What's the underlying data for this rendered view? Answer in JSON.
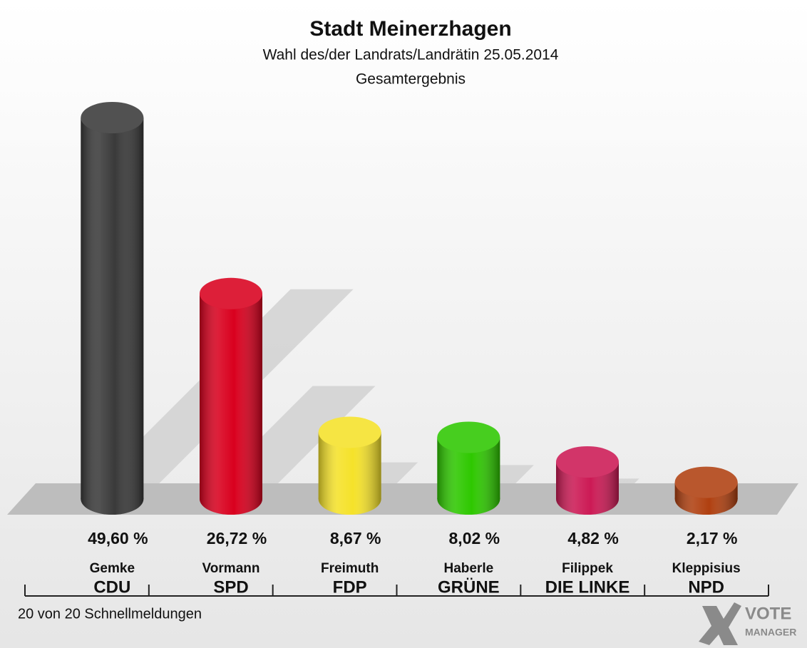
{
  "chart_data": {
    "type": "bar",
    "title": "Stadt Meinerzhagen",
    "subtitle": [
      "Wahl des/der Landrats/Landrätin 25.05.2014",
      "Gesamtergebnis"
    ],
    "categories": [
      "Gemke",
      "Vormann",
      "Freimuth",
      "Haberle",
      "Filippek",
      "Kleppisius"
    ],
    "parties": [
      "CDU",
      "SPD",
      "FDP",
      "GRÜNE",
      "DIE LINKE",
      "NPD"
    ],
    "values": [
      49.6,
      26.72,
      8.67,
      8.02,
      4.82,
      2.17
    ],
    "value_labels": [
      "49,60 %",
      "26,72 %",
      "8,67 %",
      "8,02 %",
      "4,82 %",
      "2,17 %"
    ],
    "colors": [
      "#3a3a3a",
      "#d9001e",
      "#f5e22a",
      "#2ec800",
      "#cc1a55",
      "#b04010"
    ],
    "footnote": "20 von 20 Schnellmeldungen",
    "logo": [
      "VOTE",
      "MANAGER"
    ]
  }
}
